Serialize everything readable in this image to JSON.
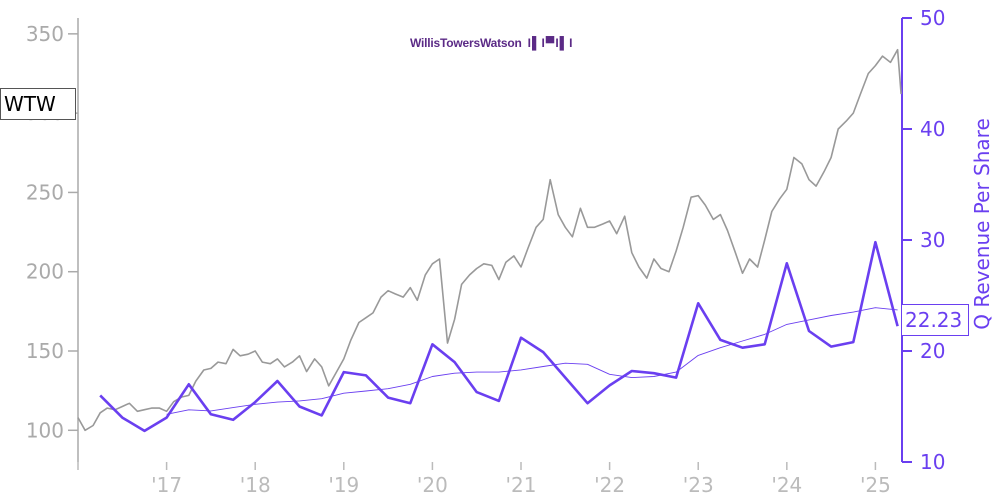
{
  "ticker": "WTW",
  "last_value_label": "22.23",
  "logo": {
    "text": "WillisTowersWatson",
    "mark": "I▌I▀I▌I"
  },
  "colors": {
    "price": "#999999",
    "revenue": "#6a3ff0",
    "axis_left": "#aaaaaa",
    "axis_right": "#6a3ff0",
    "x_ticks": "#bbbbbb"
  },
  "chart_data": {
    "type": "line",
    "x_tick_labels": [
      "'17",
      "'18",
      "'19",
      "'20",
      "'21",
      "'22",
      "'23",
      "'24",
      "'25"
    ],
    "x_tick_years": [
      2017,
      2018,
      2019,
      2020,
      2021,
      2022,
      2023,
      2024,
      2025
    ],
    "xlim": [
      2016.0,
      2025.3
    ],
    "y_left": {
      "ticks": [
        100,
        150,
        200,
        250,
        300,
        350
      ],
      "range": [
        80,
        360
      ]
    },
    "y_right": {
      "label": "Q Revenue Per Share",
      "ticks": [
        10,
        20,
        30,
        40,
        50
      ],
      "range": [
        10,
        50
      ]
    },
    "series": [
      {
        "name": "WTW",
        "axis": "left",
        "points": [
          [
            2016.0,
            108
          ],
          [
            2016.08,
            100
          ],
          [
            2016.17,
            103
          ],
          [
            2016.25,
            111
          ],
          [
            2016.33,
            114
          ],
          [
            2016.42,
            113
          ],
          [
            2016.5,
            115
          ],
          [
            2016.58,
            117
          ],
          [
            2016.67,
            112
          ],
          [
            2016.75,
            113
          ],
          [
            2016.83,
            114
          ],
          [
            2016.92,
            114
          ],
          [
            2017.0,
            112
          ],
          [
            2017.08,
            118
          ],
          [
            2017.17,
            121
          ],
          [
            2017.25,
            122
          ],
          [
            2017.33,
            131
          ],
          [
            2017.42,
            138
          ],
          [
            2017.5,
            139
          ],
          [
            2017.58,
            143
          ],
          [
            2017.67,
            142
          ],
          [
            2017.75,
            151
          ],
          [
            2017.83,
            147
          ],
          [
            2017.92,
            148
          ],
          [
            2018.0,
            150
          ],
          [
            2018.08,
            143
          ],
          [
            2018.17,
            142
          ],
          [
            2018.25,
            145
          ],
          [
            2018.33,
            140
          ],
          [
            2018.42,
            143
          ],
          [
            2018.5,
            147
          ],
          [
            2018.58,
            137
          ],
          [
            2018.67,
            145
          ],
          [
            2018.75,
            140
          ],
          [
            2018.83,
            128
          ],
          [
            2018.92,
            137
          ],
          [
            2019.0,
            145
          ],
          [
            2019.08,
            157
          ],
          [
            2019.17,
            168
          ],
          [
            2019.25,
            171
          ],
          [
            2019.33,
            174
          ],
          [
            2019.42,
            184
          ],
          [
            2019.5,
            188
          ],
          [
            2019.58,
            186
          ],
          [
            2019.67,
            184
          ],
          [
            2019.75,
            190
          ],
          [
            2019.83,
            182
          ],
          [
            2019.92,
            198
          ],
          [
            2020.0,
            205
          ],
          [
            2020.08,
            208
          ],
          [
            2020.17,
            155
          ],
          [
            2020.25,
            170
          ],
          [
            2020.33,
            192
          ],
          [
            2020.42,
            198
          ],
          [
            2020.5,
            202
          ],
          [
            2020.58,
            205
          ],
          [
            2020.67,
            204
          ],
          [
            2020.75,
            195
          ],
          [
            2020.83,
            206
          ],
          [
            2020.92,
            210
          ],
          [
            2021.0,
            203
          ],
          [
            2021.08,
            215
          ],
          [
            2021.17,
            228
          ],
          [
            2021.25,
            233
          ],
          [
            2021.33,
            258
          ],
          [
            2021.42,
            236
          ],
          [
            2021.5,
            228
          ],
          [
            2021.58,
            222
          ],
          [
            2021.67,
            240
          ],
          [
            2021.75,
            228
          ],
          [
            2021.83,
            228
          ],
          [
            2021.92,
            230
          ],
          [
            2022.0,
            232
          ],
          [
            2022.08,
            224
          ],
          [
            2022.17,
            235
          ],
          [
            2022.25,
            212
          ],
          [
            2022.33,
            203
          ],
          [
            2022.42,
            196
          ],
          [
            2022.5,
            208
          ],
          [
            2022.58,
            202
          ],
          [
            2022.67,
            200
          ],
          [
            2022.75,
            213
          ],
          [
            2022.83,
            228
          ],
          [
            2022.92,
            247
          ],
          [
            2023.0,
            248
          ],
          [
            2023.08,
            242
          ],
          [
            2023.17,
            233
          ],
          [
            2023.25,
            236
          ],
          [
            2023.33,
            226
          ],
          [
            2023.42,
            212
          ],
          [
            2023.5,
            199
          ],
          [
            2023.58,
            208
          ],
          [
            2023.67,
            203
          ],
          [
            2023.75,
            220
          ],
          [
            2023.83,
            238
          ],
          [
            2023.92,
            246
          ],
          [
            2024.0,
            252
          ],
          [
            2024.08,
            272
          ],
          [
            2024.17,
            268
          ],
          [
            2024.25,
            258
          ],
          [
            2024.33,
            254
          ],
          [
            2024.42,
            263
          ],
          [
            2024.5,
            272
          ],
          [
            2024.58,
            290
          ],
          [
            2024.67,
            295
          ],
          [
            2024.75,
            300
          ],
          [
            2024.83,
            312
          ],
          [
            2024.92,
            325
          ],
          [
            2025.0,
            330
          ],
          [
            2025.08,
            336
          ],
          [
            2025.17,
            332
          ],
          [
            2025.25,
            340
          ],
          [
            2025.29,
            312
          ]
        ]
      },
      {
        "name": "Q Revenue Per Share",
        "axis": "right",
        "points": [
          [
            2016.25,
            16.0
          ],
          [
            2016.5,
            14.0
          ],
          [
            2016.75,
            12.8
          ],
          [
            2017.0,
            14.0
          ],
          [
            2017.25,
            17.0
          ],
          [
            2017.5,
            14.3
          ],
          [
            2017.75,
            13.8
          ],
          [
            2018.0,
            15.4
          ],
          [
            2018.25,
            17.3
          ],
          [
            2018.5,
            15.0
          ],
          [
            2018.75,
            14.2
          ],
          [
            2019.0,
            18.1
          ],
          [
            2019.25,
            17.8
          ],
          [
            2019.5,
            15.8
          ],
          [
            2019.75,
            15.3
          ],
          [
            2020.0,
            20.6
          ],
          [
            2020.25,
            19.0
          ],
          [
            2020.5,
            16.3
          ],
          [
            2020.75,
            15.5
          ],
          [
            2021.0,
            21.2
          ],
          [
            2021.25,
            19.9
          ],
          [
            2021.75,
            15.3
          ],
          [
            2022.0,
            16.9
          ],
          [
            2022.25,
            18.2
          ],
          [
            2022.5,
            18.0
          ],
          [
            2022.75,
            17.6
          ],
          [
            2023.0,
            24.3
          ],
          [
            2023.25,
            21.0
          ],
          [
            2023.5,
            20.3
          ],
          [
            2023.75,
            20.6
          ],
          [
            2024.0,
            27.9
          ],
          [
            2024.25,
            21.8
          ],
          [
            2024.5,
            20.4
          ],
          [
            2024.75,
            20.8
          ],
          [
            2025.0,
            29.8
          ],
          [
            2025.25,
            22.23
          ]
        ]
      },
      {
        "name": "Q Revenue Per Share (trailing average)",
        "axis": "right",
        "points": [
          [
            2017.0,
            14.3
          ],
          [
            2017.25,
            14.7
          ],
          [
            2017.5,
            14.6
          ],
          [
            2017.75,
            14.9
          ],
          [
            2018.0,
            15.2
          ],
          [
            2018.25,
            15.4
          ],
          [
            2018.5,
            15.5
          ],
          [
            2018.75,
            15.7
          ],
          [
            2019.0,
            16.2
          ],
          [
            2019.25,
            16.4
          ],
          [
            2019.5,
            16.6
          ],
          [
            2019.75,
            17.0
          ],
          [
            2020.0,
            17.7
          ],
          [
            2020.25,
            18.0
          ],
          [
            2020.5,
            18.1
          ],
          [
            2020.75,
            18.1
          ],
          [
            2021.0,
            18.3
          ],
          [
            2021.25,
            18.6
          ],
          [
            2021.5,
            18.9
          ],
          [
            2021.75,
            18.8
          ],
          [
            2022.0,
            17.9
          ],
          [
            2022.25,
            17.6
          ],
          [
            2022.5,
            17.7
          ],
          [
            2022.75,
            18.1
          ],
          [
            2023.0,
            19.6
          ],
          [
            2023.25,
            20.3
          ],
          [
            2023.5,
            20.9
          ],
          [
            2023.75,
            21.5
          ],
          [
            2024.0,
            22.4
          ],
          [
            2024.25,
            22.8
          ],
          [
            2024.5,
            23.2
          ],
          [
            2024.75,
            23.5
          ],
          [
            2025.0,
            23.9
          ],
          [
            2025.25,
            23.7
          ]
        ]
      }
    ]
  }
}
